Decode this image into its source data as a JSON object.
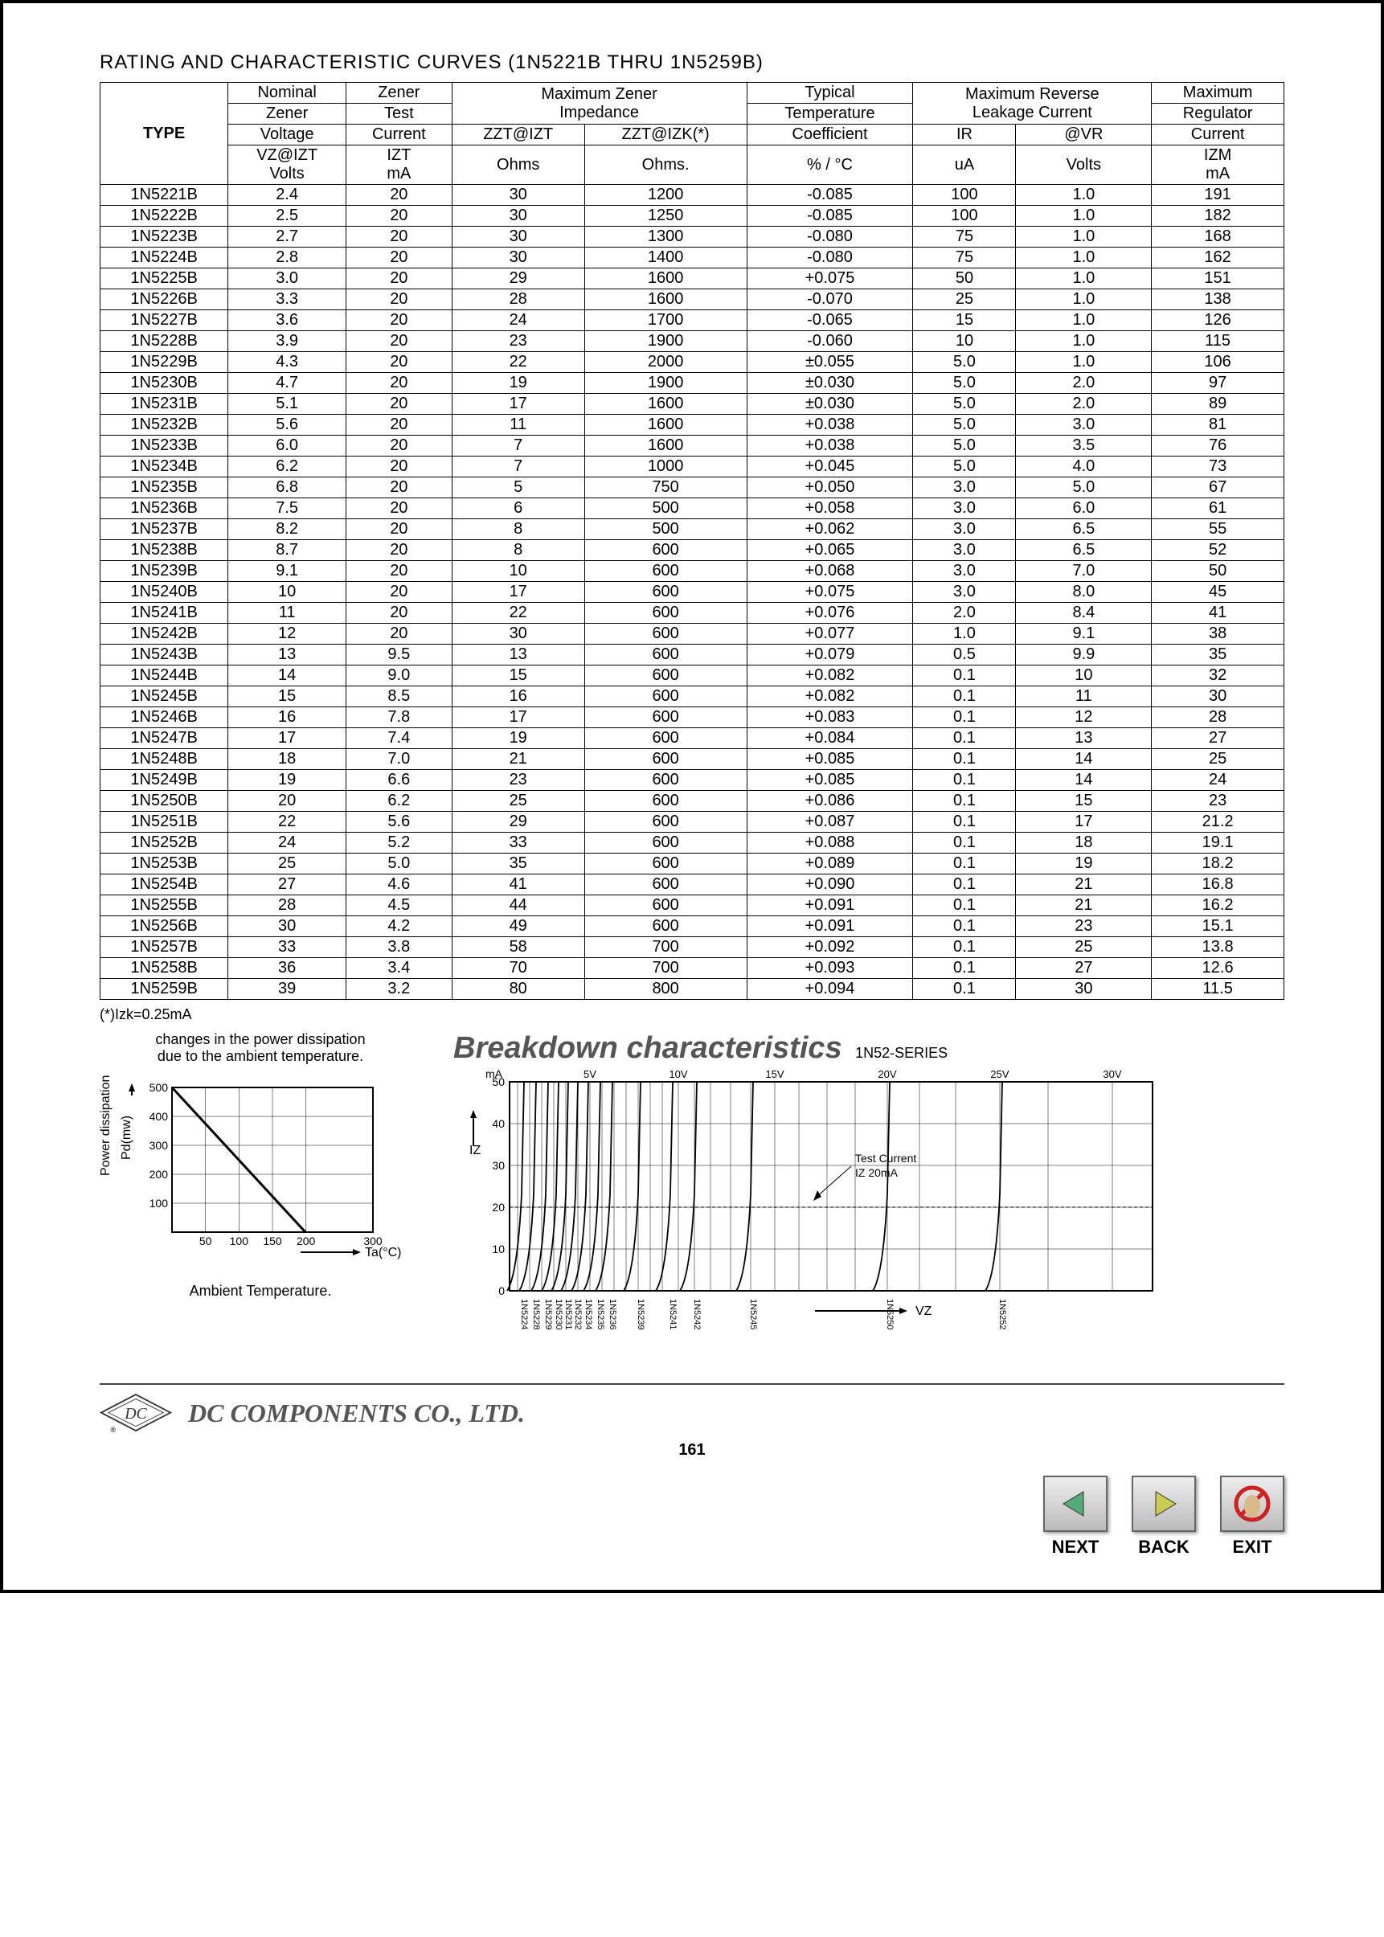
{
  "title": "RATING AND CHARACTERISTIC CURVES (1N5221B THRU 1N5259B)",
  "headers": {
    "type": "TYPE",
    "nominal1": "Nominal",
    "nominal2": "Zener",
    "nominal3": "Voltage",
    "nominal4": "VZ@IZT",
    "nominal5": "Volts",
    "zenertest1": "Zener",
    "zenertest2": "Test",
    "zenertest3": "Current",
    "zenertest4": "IZT",
    "zenertest5": "mA",
    "maxzener": "Maximum Zener",
    "impedance": "Impedance",
    "zzt1": "ZZT@IZT",
    "zzt2": "ZZT@IZK(*)",
    "ohms": "Ohms",
    "ohms2": "Ohms.",
    "typical1": "Typical",
    "typical2": "Temperature",
    "typical3": "Coefficient",
    "typical4": "%  /  °C",
    "maxrev": "Maximum Reverse",
    "leakage": "Leakage Current",
    "ir": "IR",
    "vr": "@VR",
    "ua": "uA",
    "volts2": "Volts",
    "maxreg1": "Maximum",
    "maxreg2": "Regulator",
    "maxreg3": "Current",
    "maxreg4": "IZM",
    "maxreg5": "mA"
  },
  "rows": [
    [
      "1N5221B",
      "2.4",
      "20",
      "30",
      "1200",
      "-0.085",
      "100",
      "1.0",
      "191"
    ],
    [
      "1N5222B",
      "2.5",
      "20",
      "30",
      "1250",
      "-0.085",
      "100",
      "1.0",
      "182"
    ],
    [
      "1N5223B",
      "2.7",
      "20",
      "30",
      "1300",
      "-0.080",
      "75",
      "1.0",
      "168"
    ],
    [
      "1N5224B",
      "2.8",
      "20",
      "30",
      "1400",
      "-0.080",
      "75",
      "1.0",
      "162"
    ],
    [
      "1N5225B",
      "3.0",
      "20",
      "29",
      "1600",
      "+0.075",
      "50",
      "1.0",
      "151"
    ],
    [
      "1N5226B",
      "3.3",
      "20",
      "28",
      "1600",
      "-0.070",
      "25",
      "1.0",
      "138"
    ],
    [
      "1N5227B",
      "3.6",
      "20",
      "24",
      "1700",
      "-0.065",
      "15",
      "1.0",
      "126"
    ],
    [
      "1N5228B",
      "3.9",
      "20",
      "23",
      "1900",
      "-0.060",
      "10",
      "1.0",
      "115"
    ],
    [
      "1N5229B",
      "4.3",
      "20",
      "22",
      "2000",
      "±0.055",
      "5.0",
      "1.0",
      "106"
    ],
    [
      "1N5230B",
      "4.7",
      "20",
      "19",
      "1900",
      "±0.030",
      "5.0",
      "2.0",
      "97"
    ],
    [
      "1N5231B",
      "5.1",
      "20",
      "17",
      "1600",
      "±0.030",
      "5.0",
      "2.0",
      "89"
    ],
    [
      "1N5232B",
      "5.6",
      "20",
      "11",
      "1600",
      "+0.038",
      "5.0",
      "3.0",
      "81"
    ],
    [
      "1N5233B",
      "6.0",
      "20",
      "7",
      "1600",
      "+0.038",
      "5.0",
      "3.5",
      "76"
    ],
    [
      "1N5234B",
      "6.2",
      "20",
      "7",
      "1000",
      "+0.045",
      "5.0",
      "4.0",
      "73"
    ],
    [
      "1N5235B",
      "6.8",
      "20",
      "5",
      "750",
      "+0.050",
      "3.0",
      "5.0",
      "67"
    ],
    [
      "1N5236B",
      "7.5",
      "20",
      "6",
      "500",
      "+0.058",
      "3.0",
      "6.0",
      "61"
    ],
    [
      "1N5237B",
      "8.2",
      "20",
      "8",
      "500",
      "+0.062",
      "3.0",
      "6.5",
      "55"
    ],
    [
      "1N5238B",
      "8.7",
      "20",
      "8",
      "600",
      "+0.065",
      "3.0",
      "6.5",
      "52"
    ],
    [
      "1N5239B",
      "9.1",
      "20",
      "10",
      "600",
      "+0.068",
      "3.0",
      "7.0",
      "50"
    ],
    [
      "1N5240B",
      "10",
      "20",
      "17",
      "600",
      "+0.075",
      "3.0",
      "8.0",
      "45"
    ],
    [
      "1N5241B",
      "11",
      "20",
      "22",
      "600",
      "+0.076",
      "2.0",
      "8.4",
      "41"
    ],
    [
      "1N5242B",
      "12",
      "20",
      "30",
      "600",
      "+0.077",
      "1.0",
      "9.1",
      "38"
    ],
    [
      "1N5243B",
      "13",
      "9.5",
      "13",
      "600",
      "+0.079",
      "0.5",
      "9.9",
      "35"
    ],
    [
      "1N5244B",
      "14",
      "9.0",
      "15",
      "600",
      "+0.082",
      "0.1",
      "10",
      "32"
    ],
    [
      "1N5245B",
      "15",
      "8.5",
      "16",
      "600",
      "+0.082",
      "0.1",
      "11",
      "30"
    ],
    [
      "1N5246B",
      "16",
      "7.8",
      "17",
      "600",
      "+0.083",
      "0.1",
      "12",
      "28"
    ],
    [
      "1N5247B",
      "17",
      "7.4",
      "19",
      "600",
      "+0.084",
      "0.1",
      "13",
      "27"
    ],
    [
      "1N5248B",
      "18",
      "7.0",
      "21",
      "600",
      "+0.085",
      "0.1",
      "14",
      "25"
    ],
    [
      "1N5249B",
      "19",
      "6.6",
      "23",
      "600",
      "+0.085",
      "0.1",
      "14",
      "24"
    ],
    [
      "1N5250B",
      "20",
      "6.2",
      "25",
      "600",
      "+0.086",
      "0.1",
      "15",
      "23"
    ],
    [
      "1N5251B",
      "22",
      "5.6",
      "29",
      "600",
      "+0.087",
      "0.1",
      "17",
      "21.2"
    ],
    [
      "1N5252B",
      "24",
      "5.2",
      "33",
      "600",
      "+0.088",
      "0.1",
      "18",
      "19.1"
    ],
    [
      "1N5253B",
      "25",
      "5.0",
      "35",
      "600",
      "+0.089",
      "0.1",
      "19",
      "18.2"
    ],
    [
      "1N5254B",
      "27",
      "4.6",
      "41",
      "600",
      "+0.090",
      "0.1",
      "21",
      "16.8"
    ],
    [
      "1N5255B",
      "28",
      "4.5",
      "44",
      "600",
      "+0.091",
      "0.1",
      "21",
      "16.2"
    ],
    [
      "1N5256B",
      "30",
      "4.2",
      "49",
      "600",
      "+0.091",
      "0.1",
      "23",
      "15.1"
    ],
    [
      "1N5257B",
      "33",
      "3.8",
      "58",
      "700",
      "+0.092",
      "0.1",
      "25",
      "13.8"
    ],
    [
      "1N5258B",
      "36",
      "3.4",
      "70",
      "700",
      "+0.093",
      "0.1",
      "27",
      "12.6"
    ],
    [
      "1N5259B",
      "39",
      "3.2",
      "80",
      "800",
      "+0.094",
      "0.1",
      "30",
      "11.5"
    ]
  ],
  "note": "(*)Izk=0.25mA",
  "chart1": {
    "caption1": "changes in the power dissipation",
    "caption2": "due to the ambient temperature.",
    "ylabel": "Power dissipation",
    "ylabel2": "Pd(mw)",
    "xlabel": "Ta(°C)",
    "bottom": "Ambient Temperature.",
    "yticks": [
      100,
      200,
      300,
      400,
      500
    ],
    "xticks": [
      50,
      100,
      150,
      200,
      300
    ],
    "line": [
      [
        0,
        500
      ],
      [
        200,
        0
      ]
    ]
  },
  "chart2": {
    "title": "Breakdown characteristics",
    "sub": "1N52-SERIES",
    "ylabel_top": "mA",
    "ylabel": "IZ",
    "xlabel": "VZ",
    "yticks": [
      0,
      10,
      20,
      30,
      40,
      50
    ],
    "xticks_top": [
      "5V",
      "10V",
      "15V",
      "20V",
      "25V",
      "30V"
    ],
    "testcurrent": "Test Current",
    "testcurrent2": "IZ 20mA",
    "partlabels": [
      "1N5224",
      "1N5228",
      "1N5229",
      "1N5230",
      "1N5231",
      "1N5232",
      "1N5234",
      "1N5235",
      "1N5236",
      "1N5239",
      "1N5241",
      "1N5242",
      "1N5245",
      "1N5250",
      "1N5252"
    ]
  },
  "company": "DC COMPONENTS CO., LTD.",
  "pagenum": "161",
  "nav": {
    "next": "NEXT",
    "back": "BACK",
    "exit": "EXIT"
  }
}
